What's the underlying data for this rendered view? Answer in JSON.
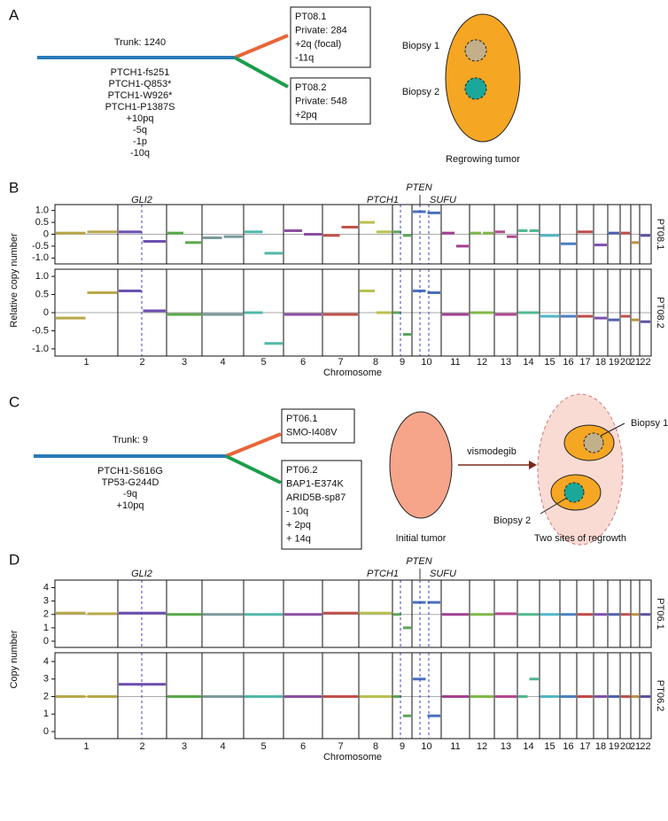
{
  "panels": [
    {
      "letter": "A",
      "trunk": "Trunk: 1240",
      "events": [
        {
          "text": "PTCH1-fs251",
          "color": "#111"
        },
        {
          "text": "PTCH1-Q853*",
          "color": "#111"
        },
        {
          "text": "PTCH1-W926*",
          "color": "#111"
        },
        {
          "text": "PTCH1-P1387S",
          "color": "#111"
        },
        {
          "text": "+10pq",
          "color": "#111"
        },
        {
          "text": "-5q",
          "color": "#111"
        },
        {
          "text": "-1p",
          "color": "#111"
        },
        {
          "text": "-10q",
          "color": "#1a9e5a"
        }
      ],
      "branches": [
        {
          "lines": [
            {
              "text": "PT08.1",
              "color": "#111"
            },
            {
              "text": "Private: 284",
              "color": "#111"
            },
            {
              "text": "+2q (focal)",
              "color": "#1a9e5a"
            },
            {
              "text": "-11q",
              "color": "#111"
            }
          ]
        },
        {
          "lines": [
            {
              "text": "PT08.2",
              "color": "#111"
            },
            {
              "text": "Private: 548",
              "color": "#111"
            },
            {
              "text": "+2pq",
              "color": "#1a9e5a"
            }
          ]
        }
      ],
      "illustration": {
        "biopsy1": "Biopsy 1",
        "biopsy2": "Biopsy 2",
        "caption": "Regrowing tumor"
      }
    },
    {
      "letter": "C",
      "trunk": "Trunk: 9",
      "events": [
        {
          "text": "PTCH1-S616G",
          "color": "#111"
        },
        {
          "text": "TP53-G244D",
          "color": "#111"
        },
        {
          "text": "-9q",
          "color": "#111"
        },
        {
          "text": "+10pq",
          "color": "#111"
        }
      ],
      "branches": [
        {
          "lines": [
            {
              "text": "PT06.1",
              "color": "#111"
            },
            {
              "text": "SMO-I408V",
              "color": "#1a9e5a"
            }
          ]
        },
        {
          "lines": [
            {
              "text": "PT06.2",
              "color": "#111"
            },
            {
              "text": "BAP1-E374K",
              "color": "#111"
            },
            {
              "text": "ARID5B-sp87",
              "color": "#111"
            },
            {
              "text": "- 10q",
              "color": "#1a9e5a"
            },
            {
              "text": "+ 2pq",
              "color": "#1a9e5a"
            },
            {
              "text": "+ 14q",
              "color": "#111"
            }
          ]
        }
      ],
      "illustration": {
        "initial": "Initial tumor",
        "drug": "vismodegib",
        "biopsy1": "Biopsy 1",
        "biopsy2": "Biopsy 2",
        "caption": "Two sites of regrowth"
      }
    }
  ],
  "plots": [
    {
      "letter": "B",
      "ylabel": "Relative copy number",
      "xlabel": "Chromosome",
      "ylim": [
        -1.1,
        1.1
      ],
      "yticks": [
        {
          "value": 1,
          "label": "1.0"
        },
        0.5,
        0,
        -0.5,
        {
          "value": -1,
          "label": "-1.0"
        }
      ],
      "genes": [
        "GLI2",
        "PTCH1",
        "PTEN",
        "SUFU"
      ],
      "chromosomes": [
        "1",
        "2",
        "3",
        "4",
        "5",
        "6",
        "7",
        "8",
        "9",
        "10",
        "11",
        "12",
        "13",
        "14",
        "15",
        "16",
        "17",
        "18",
        "19",
        "20",
        "21",
        "22"
      ],
      "colors": [
        "#b8a84a",
        "#6b4fb0",
        "#5aa84a",
        "#7a9a9a",
        "#50b8a8",
        "#8a4f9f",
        "#c0504a",
        "#b8c050",
        "#58a858",
        "#4a70c0",
        "#a04090",
        "#80b848",
        "#b04890",
        "#50b890",
        "#50b8c8",
        "#4a80c0",
        "#c04848",
        "#8050b0",
        "#5060b0",
        "#c05050",
        "#c09040",
        "#6050a0"
      ],
      "rows": [
        {
          "name": "PT08.1",
          "segments": [
            [
              0.05,
              0.1
            ],
            [
              0.1,
              -0.3
            ],
            [
              0.05,
              -0.35
            ],
            [
              -0.15,
              -0.1
            ],
            [
              0.1,
              -0.8
            ],
            [
              0.15,
              0
            ],
            [
              -0.05,
              0.3
            ],
            [
              0.5,
              0.1
            ],
            [
              0.1,
              -0.05
            ],
            [
              0.95,
              0.9
            ],
            [
              0.05,
              -0.5
            ],
            [
              0.05,
              0.05
            ],
            [
              0.1,
              -0.1
            ],
            [
              0.15,
              0.15
            ],
            [
              -0.05
            ],
            [
              -0.4
            ],
            [
              0.1
            ],
            [
              -0.45
            ],
            [
              0.05
            ],
            [
              0.05
            ],
            [
              -0.35
            ],
            [
              -0.05
            ]
          ]
        },
        {
          "name": "PT08.2",
          "segments": [
            [
              -0.15,
              0.55
            ],
            [
              0.6,
              0.05
            ],
            [
              -0.05
            ],
            [
              -0.05
            ],
            [
              0,
              -0.85
            ],
            [
              -0.05
            ],
            [
              -0.05
            ],
            [
              0.6,
              0
            ],
            [
              0,
              -0.6
            ],
            [
              0.6,
              0.55
            ],
            [
              -0.05
            ],
            [
              0
            ],
            [
              -0.05
            ],
            [
              0
            ],
            [
              -0.1
            ],
            [
              -0.1
            ],
            [
              -0.1
            ],
            [
              -0.15
            ],
            [
              -0.2
            ],
            [
              -0.1
            ],
            [
              -0.2
            ],
            [
              -0.25
            ]
          ]
        }
      ]
    },
    {
      "letter": "D",
      "ylabel": "Copy number",
      "xlabel": "Chromosome",
      "ylim": [
        -0.2,
        4.3
      ],
      "yticks": [
        4,
        3,
        2,
        1,
        0
      ],
      "genes": [
        "GLI2",
        "PTCH1",
        "PTEN",
        "SUFU"
      ],
      "chromosomes": [
        "1",
        "2",
        "3",
        "4",
        "5",
        "6",
        "7",
        "8",
        "9",
        "10",
        "11",
        "12",
        "13",
        "14",
        "15",
        "16",
        "17",
        "18",
        "19",
        "20",
        "21",
        "22"
      ],
      "colors": [
        "#b8a84a",
        "#6b4fb0",
        "#5aa84a",
        "#7a9a9a",
        "#50b8a8",
        "#8a4f9f",
        "#c0504a",
        "#b8c050",
        "#58a858",
        "#4a70c0",
        "#a04090",
        "#80b848",
        "#b04890",
        "#50b890",
        "#50b8c8",
        "#4a80c0",
        "#c04848",
        "#8050b0",
        "#5060b0",
        "#c05050",
        "#c09040",
        "#6050a0"
      ],
      "rows": [
        {
          "name": "PT06.1",
          "segments": [
            [
              2.1,
              2.05
            ],
            [
              2.1
            ],
            [
              2
            ],
            [
              2
            ],
            [
              2
            ],
            [
              2
            ],
            [
              2.1
            ],
            [
              2.1
            ],
            [
              2,
              1
            ],
            [
              2.9,
              2.9
            ],
            [
              2
            ],
            [
              2
            ],
            [
              2.05
            ],
            [
              2
            ],
            [
              2
            ],
            [
              2
            ],
            [
              2
            ],
            [
              2
            ],
            [
              2
            ],
            [
              2
            ],
            [
              2
            ],
            [
              2
            ]
          ]
        },
        {
          "name": "PT06.2",
          "segments": [
            [
              2,
              2
            ],
            [
              2.7
            ],
            [
              2
            ],
            [
              2
            ],
            [
              2
            ],
            [
              2
            ],
            [
              2
            ],
            [
              2
            ],
            [
              2,
              0.9
            ],
            [
              3,
              0.9
            ],
            [
              2
            ],
            [
              2
            ],
            [
              2
            ],
            [
              2,
              3
            ],
            [
              2
            ],
            [
              2
            ],
            [
              2
            ],
            [
              2
            ],
            [
              2
            ],
            [
              2
            ],
            [
              2
            ],
            [
              2
            ]
          ]
        }
      ]
    }
  ]
}
